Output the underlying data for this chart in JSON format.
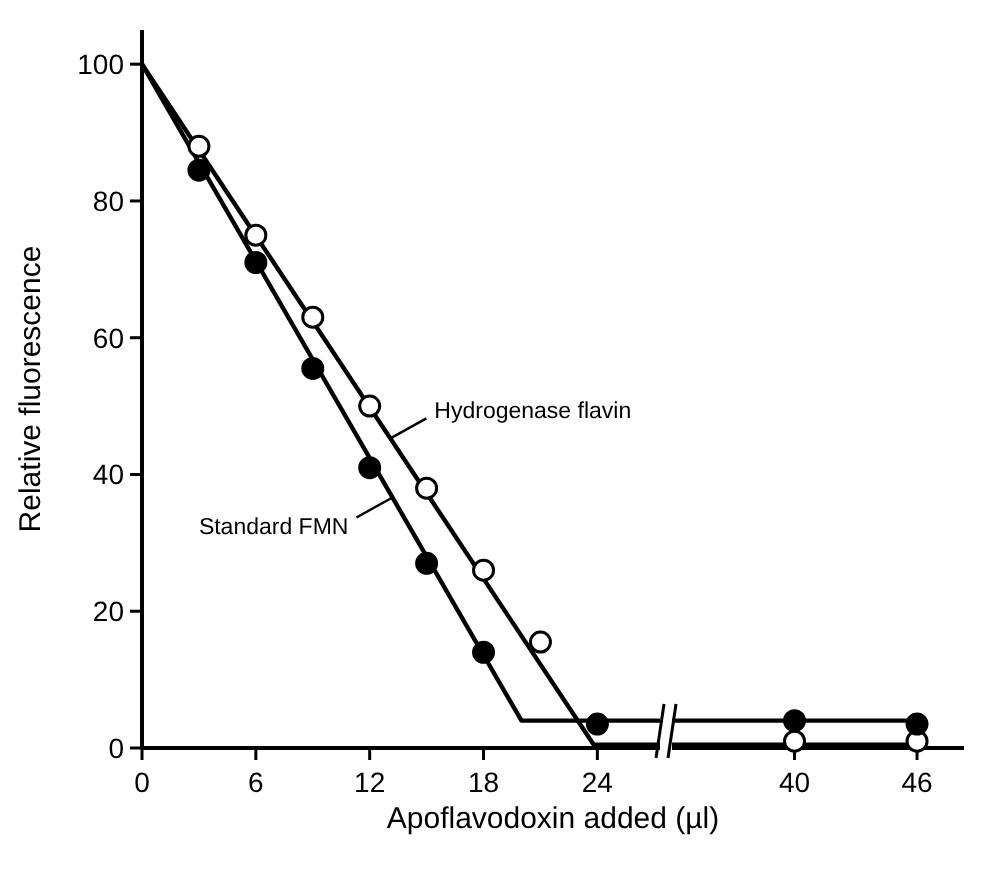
{
  "chart_data": [
    {
      "type": "scatter",
      "xlabel": "Apoflavodoxin added (µl)",
      "ylabel": "Relative fluorescence",
      "xlim": [
        0,
        27.3
      ],
      "ylim": [
        0,
        105
      ],
      "xticks": [
        0,
        6,
        12,
        18,
        24
      ],
      "yticks": [
        0,
        20,
        40,
        60,
        80,
        100
      ],
      "series": [
        {
          "type": "line",
          "name": "Hydrogenase flavin",
          "color": "#000000",
          "x": [
            0,
            23.8,
            27.3
          ],
          "values": [
            100,
            0.5,
            0.5
          ]
        },
        {
          "type": "line",
          "name": "Standard FMN",
          "color": "#000000",
          "x": [
            0,
            20,
            27.3
          ],
          "values": [
            100,
            4,
            4
          ]
        },
        {
          "type": "scatter",
          "color": "#ffffff",
          "x": [
            3,
            6,
            9,
            12,
            15,
            18,
            21
          ],
          "values": [
            88,
            75,
            63,
            50,
            38,
            26,
            15.5
          ],
          "marker": "circle"
        },
        {
          "type": "scatter",
          "color": "#000000",
          "x": [
            3,
            6,
            9,
            12,
            15,
            18,
            24
          ],
          "values": [
            84.5,
            71,
            55.5,
            41,
            27,
            14,
            3.5
          ],
          "marker": "circle"
        }
      ]
    },
    {
      "type": "scatter",
      "xlim": [
        34,
        48.3
      ],
      "ylim": [
        0,
        100
      ],
      "xticks": [
        40,
        46
      ],
      "yticks": [
        0,
        20,
        40,
        60,
        80,
        100
      ],
      "tick_labels": "x",
      "series": [
        {
          "type": "line",
          "color": "#000000",
          "x": [
            34,
            46
          ],
          "values": [
            0.5,
            0.5
          ]
        },
        {
          "type": "line",
          "color": "#000000",
          "x": [
            34,
            46
          ],
          "values": [
            4,
            4
          ]
        },
        {
          "type": "scatter",
          "color": "#ffffff",
          "x": [
            40,
            46
          ],
          "values": [
            1,
            1
          ],
          "marker": "circle"
        },
        {
          "type": "scatter",
          "color": "#000000",
          "x": [
            40,
            46
          ],
          "values": [
            4,
            3.5
          ],
          "marker": "circle"
        }
      ]
    }
  ]
}
